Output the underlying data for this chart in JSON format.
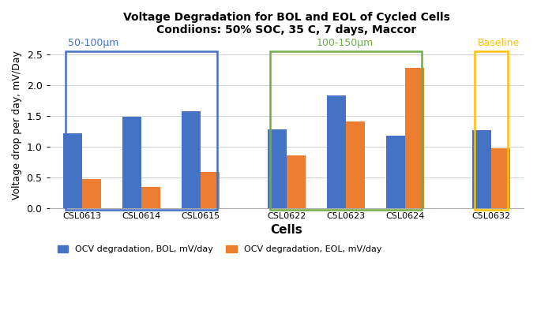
{
  "title_line1": "Voltage Degradation for BOL and EOL of Cycled Cells",
  "title_line2": "Condiions: 50% SOC, 35 C, 7 days, Maccor",
  "cells": [
    "CSL0613",
    "CSL0614",
    "CSL0615",
    "CSL0622",
    "C5L0623",
    "CSL0624",
    "C5L0632"
  ],
  "bol_values": [
    1.22,
    1.48,
    1.58,
    1.28,
    1.83,
    1.18,
    1.27
  ],
  "eol_values": [
    0.47,
    0.35,
    0.59,
    0.86,
    1.41,
    2.28,
    0.97
  ],
  "bol_color": "#4472C4",
  "eol_color": "#ED7D31",
  "ylabel": "Voltage drop per day, mV/Day",
  "xlabel": "Cells",
  "ylim": [
    0.0,
    2.7
  ],
  "yticks": [
    0.0,
    0.5,
    1.0,
    1.5,
    2.0,
    2.5
  ],
  "group1_label": "50-100μm",
  "group2_label": "100-150μm",
  "group3_label": "Baseline",
  "group1_color": "#4472C4",
  "group2_color": "#70AD47",
  "group3_color": "#FFC000",
  "legend_bol": "OCV degradation, BOL, mV/day",
  "legend_eol": "OCV degradation, EOL, mV/day",
  "background_color": "#FFFFFF",
  "plot_bg_color": "#FFFFFF"
}
